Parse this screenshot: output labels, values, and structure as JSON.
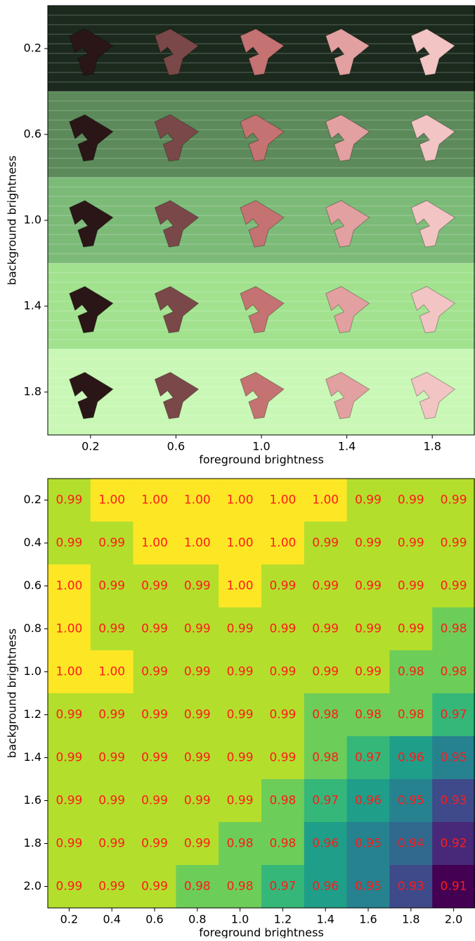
{
  "chart_data": [
    {
      "type": "image_grid",
      "xlabel": "foreground brightness",
      "ylabel": "background brightness",
      "categories": [
        "0.2",
        "0.6",
        "1.0",
        "1.4",
        "1.8"
      ],
      "y_categories": [
        "0.2",
        "0.6",
        "1.0",
        "1.4",
        "1.8"
      ],
      "row_colors": [
        "#1b2a1d",
        "#5c8a5a",
        "#7cba78",
        "#a2e28f",
        "#c9f7b5"
      ],
      "col_colors": [
        "#2a1616",
        "#7a4848",
        "#c47272",
        "#e2a0a0",
        "#f3c4c4"
      ]
    },
    {
      "type": "heatmap",
      "xlabel": "foreground brightness",
      "ylabel": "background brightness",
      "categories": [
        "0.2",
        "0.4",
        "0.6",
        "0.8",
        "1.0",
        "1.2",
        "1.4",
        "1.6",
        "1.8",
        "2.0"
      ],
      "y_categories": [
        "0.2",
        "0.4",
        "0.6",
        "0.8",
        "1.0",
        "1.2",
        "1.4",
        "1.6",
        "1.8",
        "2.0"
      ],
      "colormap": "viridis",
      "text_color": "#ff1a1a",
      "values": [
        [
          0.99,
          1,
          1,
          1,
          1,
          1,
          1,
          0.99,
          0.99,
          0.99
        ],
        [
          0.99,
          0.99,
          1,
          1,
          1,
          1,
          0.99,
          0.99,
          0.99,
          0.99
        ],
        [
          1,
          0.99,
          0.99,
          0.99,
          1,
          0.99,
          0.99,
          0.99,
          0.99,
          0.99
        ],
        [
          1,
          0.99,
          0.99,
          0.99,
          0.99,
          0.99,
          0.99,
          0.99,
          0.99,
          0.98
        ],
        [
          1,
          1,
          0.99,
          0.99,
          0.99,
          0.99,
          0.99,
          0.99,
          0.98,
          0.98
        ],
        [
          0.99,
          0.99,
          0.99,
          0.99,
          0.99,
          0.99,
          0.98,
          0.98,
          0.98,
          0.97
        ],
        [
          0.99,
          0.99,
          0.99,
          0.99,
          0.99,
          0.99,
          0.98,
          0.97,
          0.96,
          0.95
        ],
        [
          0.99,
          0.99,
          0.99,
          0.99,
          0.99,
          0.98,
          0.97,
          0.96,
          0.95,
          0.93
        ],
        [
          0.99,
          0.99,
          0.99,
          0.99,
          0.98,
          0.98,
          0.96,
          0.95,
          0.94,
          0.92
        ],
        [
          0.99,
          0.99,
          0.99,
          0.98,
          0.98,
          0.97,
          0.96,
          0.95,
          0.93,
          0.91
        ]
      ],
      "value_labels": [
        [
          "0.99",
          "1.00",
          "1.00",
          "1.00",
          "1.00",
          "1.00",
          "1.00",
          "0.99",
          "0.99",
          "0.99"
        ],
        [
          "0.99",
          "0.99",
          "1.00",
          "1.00",
          "1.00",
          "1.00",
          "0.99",
          "0.99",
          "0.99",
          "0.99"
        ],
        [
          "1.00",
          "0.99",
          "0.99",
          "0.99",
          "1.00",
          "0.99",
          "0.99",
          "0.99",
          "0.99",
          "0.99"
        ],
        [
          "1.00",
          "0.99",
          "0.99",
          "0.99",
          "0.99",
          "0.99",
          "0.99",
          "0.99",
          "0.99",
          "0.98"
        ],
        [
          "1.00",
          "1.00",
          "0.99",
          "0.99",
          "0.99",
          "0.99",
          "0.99",
          "0.99",
          "0.98",
          "0.98"
        ],
        [
          "0.99",
          "0.99",
          "0.99",
          "0.99",
          "0.99",
          "0.99",
          "0.98",
          "0.98",
          "0.98",
          "0.97"
        ],
        [
          "0.99",
          "0.99",
          "0.99",
          "0.99",
          "0.99",
          "0.99",
          "0.98",
          "0.97",
          "0.96",
          "0.95"
        ],
        [
          "0.99",
          "0.99",
          "0.99",
          "0.99",
          "0.99",
          "0.98",
          "0.97",
          "0.96",
          "0.95",
          "0.93"
        ],
        [
          "0.99",
          "0.99",
          "0.99",
          "0.99",
          "0.98",
          "0.98",
          "0.96",
          "0.95",
          "0.94",
          "0.92"
        ],
        [
          "0.99",
          "0.99",
          "0.99",
          "0.98",
          "0.98",
          "0.97",
          "0.96",
          "0.95",
          "0.93",
          "0.91"
        ]
      ]
    }
  ]
}
